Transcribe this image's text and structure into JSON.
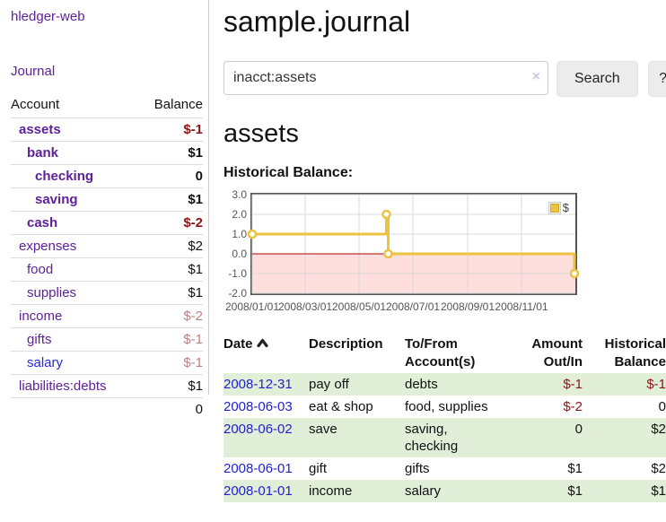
{
  "colors": {
    "purple": "#5f2099",
    "blue": "#2626dd",
    "blue2": "#2222cc",
    "neg-strong": "#8b1417",
    "neg-soft": "#bd7f81",
    "stripe-green": "#e1eed8",
    "gold": "#edc240"
  },
  "sidebar": {
    "brand": "hledger-web",
    "journal_link": "Journal",
    "accounts": {
      "header_account": "Account",
      "header_balance": "Balance",
      "rows": [
        {
          "name": "assets",
          "balance": "$-1",
          "indent": 1,
          "bold": true,
          "balance_class": "neg-strong"
        },
        {
          "name": "bank",
          "balance": "$1",
          "indent": 2,
          "bold": true,
          "balance_class": ""
        },
        {
          "name": "checking",
          "balance": "0",
          "indent": 3,
          "bold": true,
          "balance_class": ""
        },
        {
          "name": "saving",
          "balance": "$1",
          "indent": 3,
          "bold": true,
          "balance_class": ""
        },
        {
          "name": "cash",
          "balance": "$-2",
          "indent": 2,
          "bold": true,
          "balance_class": "neg-strong"
        },
        {
          "name": "expenses",
          "balance": "$2",
          "indent": 1,
          "bold": false,
          "balance_class": ""
        },
        {
          "name": "food",
          "balance": "$1",
          "indent": 2,
          "bold": false,
          "balance_class": ""
        },
        {
          "name": "supplies",
          "balance": "$1",
          "indent": 2,
          "bold": false,
          "balance_class": ""
        },
        {
          "name": "income",
          "balance": "$-2",
          "indent": 1,
          "bold": false,
          "balance_class": "neg-soft"
        },
        {
          "name": "gifts",
          "balance": "$-1",
          "indent": 2,
          "bold": false,
          "balance_class": "neg-soft"
        },
        {
          "name": "salary",
          "balance": "$-1",
          "indent": 2,
          "bold": false,
          "balance_class": "neg-soft",
          "link_class": "blue"
        },
        {
          "name": "liabilities:debts",
          "balance": "$1",
          "indent": 1,
          "bold": false,
          "balance_class": ""
        }
      ],
      "total": "0"
    }
  },
  "main": {
    "title": "sample.journal",
    "search": {
      "value": "inacct:assets",
      "clear_icon": "×",
      "button_label": "Search",
      "help_label": "?"
    },
    "account_heading": "assets",
    "chart_title": "Historical Balance:"
  },
  "chart_data": {
    "type": "line",
    "title": "Historical Balance:",
    "series": [
      {
        "name": "$",
        "color": "#edc240",
        "step": true,
        "points": [
          [
            "2008-01-01",
            1.0
          ],
          [
            "2008-06-01",
            2.0
          ],
          [
            "2008-06-03",
            0.0
          ],
          [
            "2008-12-31",
            -1.0
          ]
        ]
      }
    ],
    "xlim": [
      "2008-01-01",
      "2009-01-01"
    ],
    "ylim": [
      -2.0,
      3.0
    ],
    "yticks": [
      3.0,
      2.0,
      1.0,
      0.0,
      -1.0,
      -2.0
    ],
    "xticks": [
      "2008/01/01",
      "2008/03/01",
      "2008/05/01",
      "2008/07/01",
      "2008/09/01",
      "2008/11/01"
    ],
    "legend": {
      "position": "top-right",
      "label": "$"
    },
    "grid": true,
    "negative_region_color": "#ffdede",
    "zero_line_color": "#a40000",
    "grid_color": "#d8d8d8",
    "border_color": "#545454"
  },
  "register": {
    "headers": {
      "date": "Date",
      "description": "Description",
      "accounts": "To/From Account(s)",
      "amount": "Amount Out/In",
      "balance": "Historical Balance"
    },
    "rows": [
      {
        "date": "2008-12-31",
        "description": "pay off",
        "accounts": "debts",
        "amount": "$-1",
        "balance": "$-1",
        "amount_neg": true,
        "balance_neg": true
      },
      {
        "date": "2008-06-03",
        "description": "eat & shop",
        "accounts": "food, supplies",
        "amount": "$-2",
        "balance": "0",
        "amount_neg": true,
        "balance_neg": false
      },
      {
        "date": "2008-06-02",
        "description": "save",
        "accounts": "saving,\nchecking",
        "amount": "0",
        "balance": "$2",
        "amount_neg": false,
        "balance_neg": false
      },
      {
        "date": "2008-06-01",
        "description": "gift",
        "accounts": "gifts",
        "amount": "$1",
        "balance": "$2",
        "amount_neg": false,
        "balance_neg": false
      },
      {
        "date": "2008-01-01",
        "description": "income",
        "accounts": "salary",
        "amount": "$1",
        "balance": "$1",
        "amount_neg": false,
        "balance_neg": false
      }
    ]
  }
}
